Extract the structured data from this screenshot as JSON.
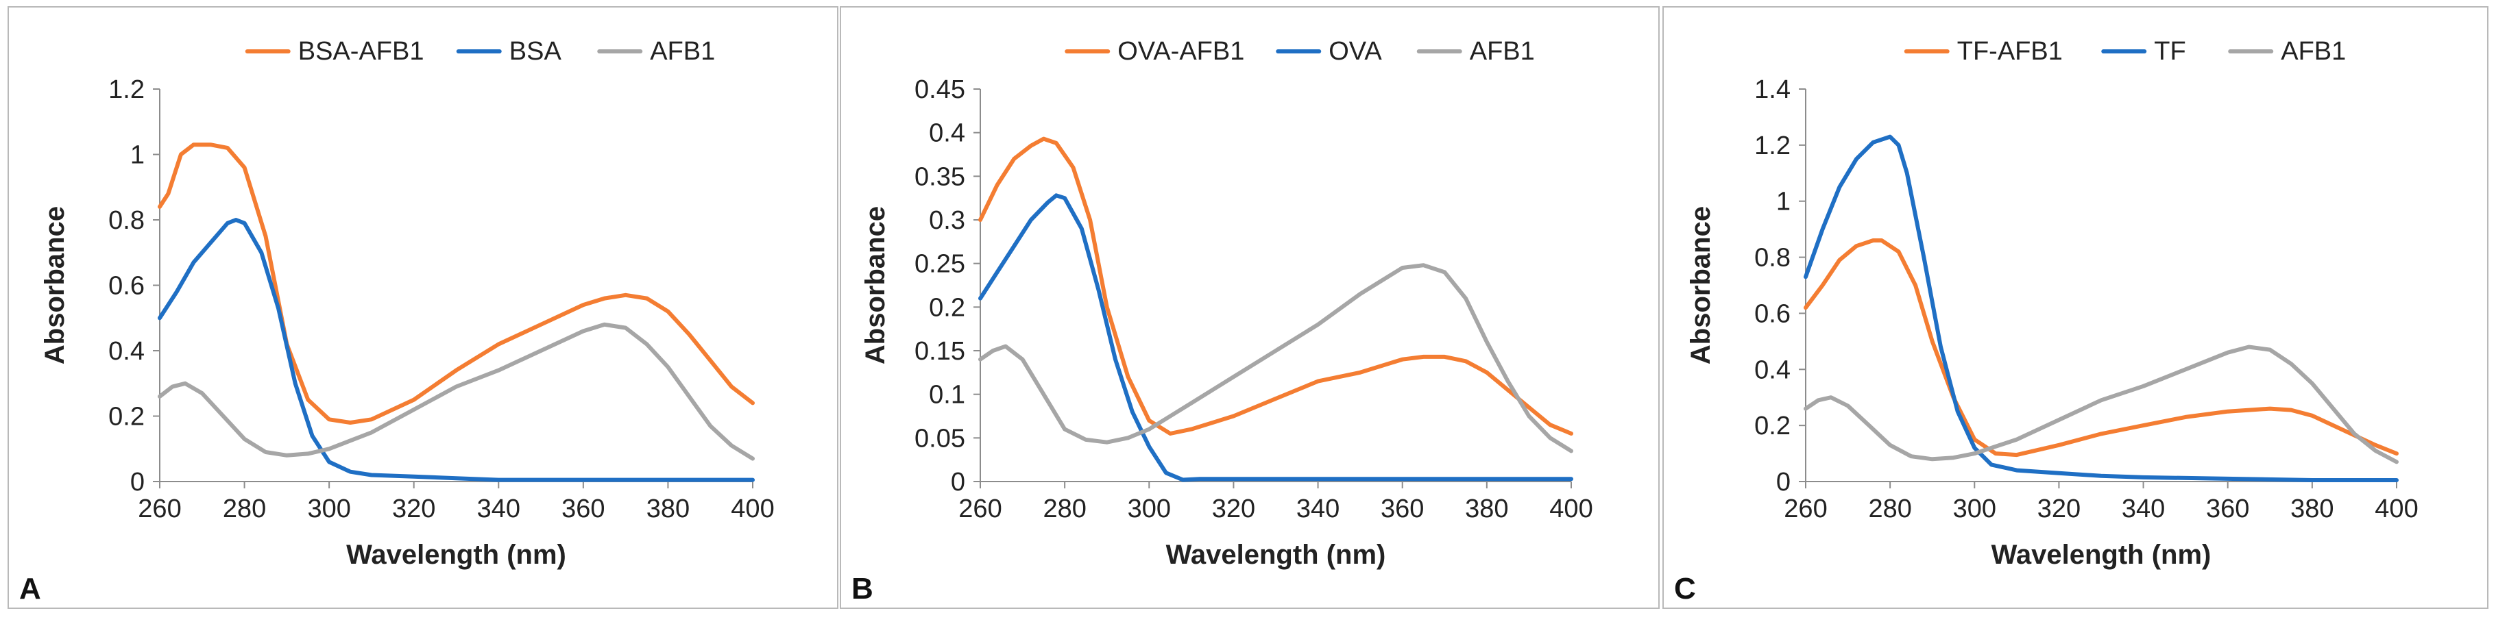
{
  "chart_data": [
    {
      "type": "line",
      "panel_label": "A",
      "xlabel": "Wavelength (nm)",
      "ylabel": "Absorbance",
      "xlim": [
        260,
        400
      ],
      "ylim": [
        0,
        1.2
      ],
      "xticks": [
        260,
        280,
        300,
        320,
        340,
        360,
        380,
        400
      ],
      "xtick_labels": [
        "260",
        "280",
        "300",
        "320",
        "340",
        "360",
        "380",
        "400"
      ],
      "yticks": [
        0,
        0.2,
        0.4,
        0.6,
        0.8,
        1,
        1.2
      ],
      "ytick_labels": [
        "0",
        "0.2",
        "0.4",
        "0.6",
        "0.8",
        "1",
        "1.2"
      ],
      "grid": false,
      "legend_position": "top",
      "series": [
        {
          "name": "BSA-AFB1",
          "color": "#F47D32",
          "x": [
            260,
            262,
            265,
            268,
            272,
            276,
            280,
            285,
            290,
            295,
            300,
            305,
            310,
            320,
            330,
            340,
            350,
            360,
            365,
            370,
            375,
            380,
            385,
            390,
            395,
            400
          ],
          "values": [
            0.84,
            0.88,
            1.0,
            1.03,
            1.03,
            1.02,
            0.96,
            0.75,
            0.42,
            0.25,
            0.19,
            0.18,
            0.19,
            0.25,
            0.34,
            0.42,
            0.48,
            0.54,
            0.56,
            0.57,
            0.56,
            0.52,
            0.45,
            0.37,
            0.29,
            0.24
          ]
        },
        {
          "name": "BSA",
          "color": "#1F6FC4",
          "x": [
            260,
            264,
            268,
            272,
            276,
            278,
            280,
            284,
            288,
            292,
            296,
            300,
            305,
            310,
            320,
            330,
            340,
            360,
            380,
            400
          ],
          "values": [
            0.5,
            0.58,
            0.67,
            0.73,
            0.79,
            0.8,
            0.79,
            0.7,
            0.53,
            0.3,
            0.14,
            0.06,
            0.03,
            0.02,
            0.015,
            0.01,
            0.005,
            0.005,
            0.005,
            0.005
          ]
        },
        {
          "name": "AFB1",
          "color": "#A6A6A6",
          "x": [
            260,
            263,
            266,
            270,
            275,
            280,
            285,
            290,
            295,
            300,
            310,
            320,
            330,
            340,
            350,
            360,
            365,
            370,
            375,
            380,
            385,
            390,
            395,
            400
          ],
          "values": [
            0.26,
            0.29,
            0.3,
            0.27,
            0.2,
            0.13,
            0.09,
            0.08,
            0.085,
            0.1,
            0.15,
            0.22,
            0.29,
            0.34,
            0.4,
            0.46,
            0.48,
            0.47,
            0.42,
            0.35,
            0.26,
            0.17,
            0.11,
            0.07
          ]
        }
      ]
    },
    {
      "type": "line",
      "panel_label": "B",
      "xlabel": "Wavelength (nm)",
      "ylabel": "Absorbance",
      "xlim": [
        260,
        400
      ],
      "ylim": [
        0,
        0.45
      ],
      "xticks": [
        260,
        280,
        300,
        320,
        340,
        360,
        380,
        400
      ],
      "xtick_labels": [
        "260",
        "280",
        "300",
        "320",
        "340",
        "360",
        "380",
        "400"
      ],
      "yticks": [
        0,
        0.05,
        0.1,
        0.15,
        0.2,
        0.25,
        0.3,
        0.35,
        0.4,
        0.45
      ],
      "ytick_labels": [
        "0",
        "0.05",
        "0.1",
        "0.15",
        "0.2",
        "0.25",
        "0.3",
        "0.35",
        "0.4",
        "0.45"
      ],
      "grid": false,
      "legend_position": "top",
      "series": [
        {
          "name": "OVA-AFB1",
          "color": "#F47D32",
          "x": [
            260,
            264,
            268,
            272,
            275,
            278,
            282,
            286,
            290,
            295,
            300,
            305,
            310,
            320,
            330,
            340,
            350,
            360,
            365,
            370,
            375,
            380,
            385,
            390,
            395,
            400
          ],
          "values": [
            0.3,
            0.34,
            0.37,
            0.385,
            0.393,
            0.388,
            0.36,
            0.3,
            0.2,
            0.12,
            0.07,
            0.055,
            0.06,
            0.075,
            0.095,
            0.115,
            0.125,
            0.14,
            0.143,
            0.143,
            0.138,
            0.125,
            0.105,
            0.085,
            0.065,
            0.055
          ]
        },
        {
          "name": "OVA",
          "color": "#1F6FC4",
          "x": [
            260,
            264,
            268,
            272,
            276,
            278,
            280,
            284,
            288,
            292,
            296,
            300,
            304,
            308,
            312,
            320,
            340,
            360,
            380,
            400
          ],
          "values": [
            0.21,
            0.24,
            0.27,
            0.3,
            0.32,
            0.328,
            0.325,
            0.29,
            0.22,
            0.14,
            0.08,
            0.04,
            0.01,
            0.002,
            0.003,
            0.003,
            0.003,
            0.003,
            0.003,
            0.003
          ]
        },
        {
          "name": "AFB1",
          "color": "#A6A6A6",
          "x": [
            260,
            263,
            266,
            270,
            275,
            280,
            285,
            290,
            295,
            300,
            305,
            310,
            320,
            330,
            340,
            350,
            355,
            360,
            365,
            370,
            375,
            380,
            385,
            390,
            395,
            400
          ],
          "values": [
            0.14,
            0.15,
            0.155,
            0.14,
            0.1,
            0.06,
            0.048,
            0.045,
            0.05,
            0.06,
            0.075,
            0.09,
            0.12,
            0.15,
            0.18,
            0.215,
            0.23,
            0.245,
            0.248,
            0.24,
            0.21,
            0.16,
            0.115,
            0.075,
            0.05,
            0.035
          ]
        }
      ]
    },
    {
      "type": "line",
      "panel_label": "C",
      "xlabel": "Wavelength (nm)",
      "ylabel": "Absorbance",
      "xlim": [
        260,
        400
      ],
      "ylim": [
        0,
        1.4
      ],
      "xticks": [
        260,
        280,
        300,
        320,
        340,
        360,
        380,
        400
      ],
      "xtick_labels": [
        "260",
        "280",
        "300",
        "320",
        "340",
        "360",
        "380",
        "400"
      ],
      "yticks": [
        0,
        0.2,
        0.4,
        0.6,
        0.8,
        1,
        1.2,
        1.4
      ],
      "ytick_labels": [
        "0",
        "0.2",
        "0.4",
        "0.6",
        "0.8",
        "1",
        "1.2",
        "1.4"
      ],
      "grid": false,
      "legend_position": "top",
      "series": [
        {
          "name": "TF-AFB1",
          "color": "#F47D32",
          "x": [
            260,
            264,
            268,
            272,
            276,
            278,
            282,
            286,
            290,
            295,
            300,
            305,
            310,
            320,
            330,
            340,
            350,
            360,
            370,
            375,
            380,
            385,
            390,
            395,
            400
          ],
          "values": [
            0.62,
            0.7,
            0.79,
            0.84,
            0.86,
            0.86,
            0.82,
            0.7,
            0.5,
            0.3,
            0.15,
            0.1,
            0.095,
            0.13,
            0.17,
            0.2,
            0.23,
            0.25,
            0.26,
            0.255,
            0.235,
            0.2,
            0.165,
            0.13,
            0.1
          ]
        },
        {
          "name": "TF",
          "color": "#1F6FC4",
          "x": [
            260,
            264,
            268,
            272,
            276,
            280,
            282,
            284,
            288,
            292,
            296,
            300,
            304,
            310,
            320,
            330,
            340,
            360,
            380,
            400
          ],
          "values": [
            0.73,
            0.9,
            1.05,
            1.15,
            1.21,
            1.23,
            1.2,
            1.1,
            0.8,
            0.48,
            0.25,
            0.12,
            0.06,
            0.04,
            0.03,
            0.02,
            0.015,
            0.01,
            0.005,
            0.005
          ]
        },
        {
          "name": "AFB1",
          "color": "#A6A6A6",
          "x": [
            260,
            263,
            266,
            270,
            275,
            280,
            285,
            290,
            295,
            300,
            310,
            320,
            330,
            340,
            350,
            360,
            365,
            370,
            375,
            380,
            385,
            390,
            395,
            400
          ],
          "values": [
            0.26,
            0.29,
            0.3,
            0.27,
            0.2,
            0.13,
            0.09,
            0.08,
            0.085,
            0.1,
            0.15,
            0.22,
            0.29,
            0.34,
            0.4,
            0.46,
            0.48,
            0.47,
            0.42,
            0.35,
            0.26,
            0.17,
            0.11,
            0.07
          ]
        }
      ]
    }
  ]
}
